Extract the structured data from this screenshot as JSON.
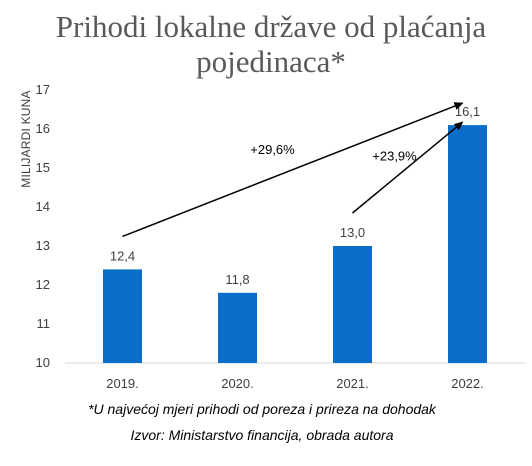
{
  "chart_data": {
    "type": "bar",
    "title_lines": [
      "Prihodi lokalne države od plaćanja",
      "pojedinaca*"
    ],
    "xlabel": "",
    "ylabel": "MILIJARDI KUNA",
    "categories": [
      "2019.",
      "2020.",
      "2021.",
      "2022."
    ],
    "values": [
      12.4,
      11.8,
      13.0,
      16.1
    ],
    "data_labels": [
      "12,4",
      "11,8",
      "13,0",
      "16,1"
    ],
    "ylim": [
      10,
      17
    ],
    "yticks": [
      10,
      11,
      12,
      13,
      14,
      15,
      16,
      17
    ],
    "grid": false,
    "bar_color": "#0A6EC8",
    "annotations": [
      {
        "text": "+29,6%",
        "from": "2019.",
        "to": "2022."
      },
      {
        "text": "+23,9%",
        "from": "2021.",
        "to": "2022."
      }
    ],
    "footnotes": [
      "*U najvećoj mjeri prihodi od poreza i prireza na dohodak",
      "Izvor: Ministarstvo financija, obrada autora"
    ]
  }
}
